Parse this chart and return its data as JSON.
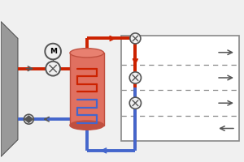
{
  "bg_color": "#f0f0f0",
  "red": "#cc2200",
  "blue": "#4466cc",
  "gray": "#888888",
  "dark_gray": "#555555",
  "light_red": "#dd6655",
  "lred_fill": "#e07060",
  "trap_gray": "#999999",
  "white": "#ffffff",
  "lw_pipe": 2.8,
  "lw_thin": 1.2
}
